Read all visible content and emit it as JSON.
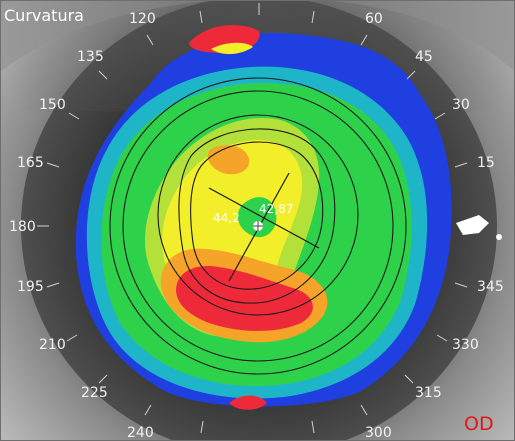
{
  "map_title": "Curvatura",
  "eye_label": "OD",
  "meridian_labels": [
    "120",
    "60",
    "135",
    "45",
    "150",
    "30",
    "165",
    "15",
    "180",
    "195",
    "345",
    "210",
    "330",
    "225",
    "315",
    "240",
    "300"
  ],
  "readouts": {
    "k_flat": "44,2",
    "k_steep": "42,87"
  },
  "colors": {
    "eye_label": "#e01818",
    "title": "#ffffff",
    "scale_blue": "#1f3fe0",
    "scale_cyan": "#1fb5c8",
    "scale_green": "#2ed24a",
    "scale_yellow": "#f2ee2a",
    "scale_orange": "#f5a329",
    "scale_red": "#ee2a3a"
  }
}
